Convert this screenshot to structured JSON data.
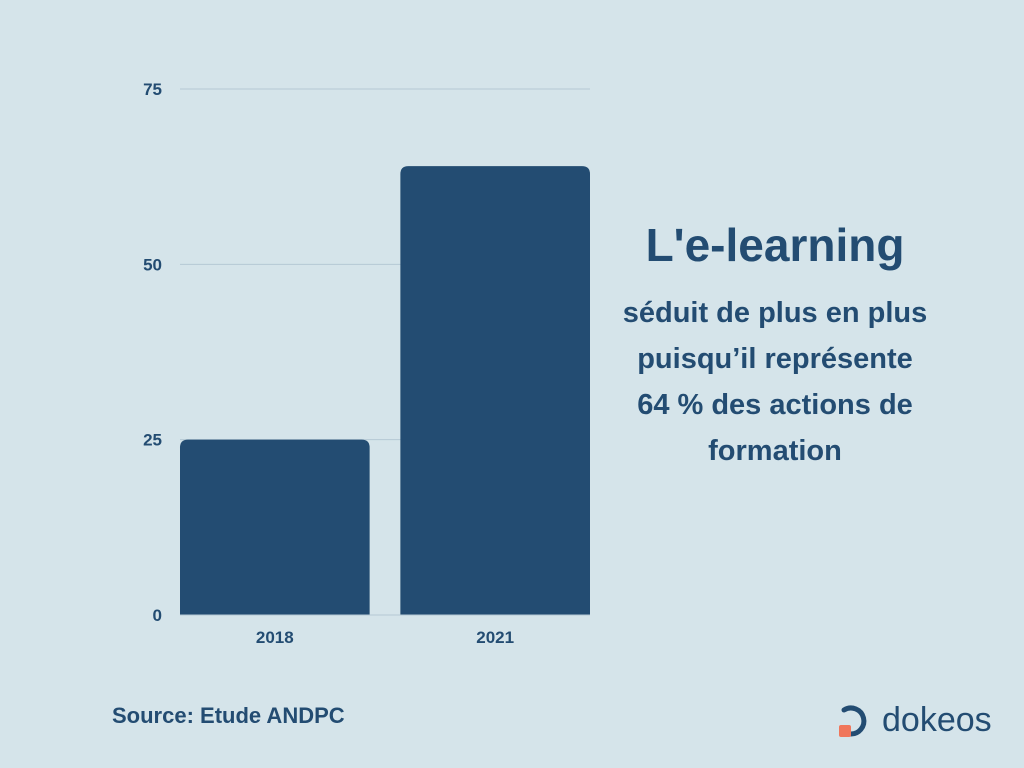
{
  "chart_data": {
    "type": "bar",
    "categories": [
      "2018",
      "2021"
    ],
    "values": [
      25,
      64
    ],
    "ylim": [
      0,
      75
    ],
    "yticks": [
      0,
      25,
      50,
      75
    ],
    "grid": true,
    "bar_color": "#234c72",
    "grid_color": "#b5c9d4"
  },
  "text": {
    "headline": "L'e-learning",
    "body": "séduit de plus en plus puisqu’il représente 64 % des actions de formation",
    "source": "Source: Etude ANDPC"
  },
  "logo": {
    "text": "dokeos",
    "accent": "#f0765b"
  }
}
